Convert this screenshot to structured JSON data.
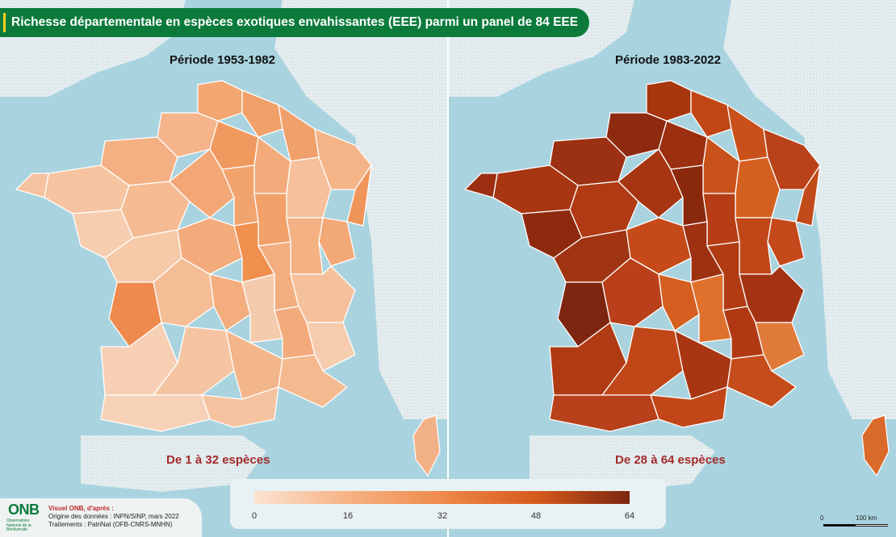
{
  "title": "Richesse départementale en espèces exotiques envahissantes (EEE) parmi un panel de 84 EEE",
  "maps": [
    {
      "period": "Période 1953-1982",
      "range": "De 1 à 32 espèces",
      "fill_palette": [
        "#f7c7a2",
        "#f5b88b",
        "#f3a978",
        "#f19a63",
        "#f5cfb2",
        "#efb08a"
      ]
    },
    {
      "period": "Période 1983-2022",
      "range": "De 28 à 64 espèces",
      "fill_palette": [
        "#c9471b",
        "#b33a14",
        "#a23212",
        "#d8601f",
        "#8e2a0f",
        "#bf4418"
      ]
    }
  ],
  "legend": {
    "ticks": [
      "0",
      "16",
      "32",
      "48",
      "64"
    ],
    "colors": [
      "#fbe3d2",
      "#f6b283",
      "#ef8a4a",
      "#d65a1c",
      "#7c2710"
    ]
  },
  "credit": {
    "logo": "ONB",
    "logo_sub": "Observatoire National de la Biodiversité",
    "visuel": "Visuel ONB, d'après :",
    "origine": "Origine des données : INPN/SINP, mars 2022",
    "traitements": "Traitements : PatriNat (OFB-CNRS-MNHN)"
  },
  "scale": {
    "zero": "0",
    "dist": "100 km"
  },
  "colors": {
    "sea": "#a9d3df",
    "land_neighbor": "#e6f0f2",
    "title_bg": "#0b7a3b",
    "range_text": "#a32a2a"
  }
}
